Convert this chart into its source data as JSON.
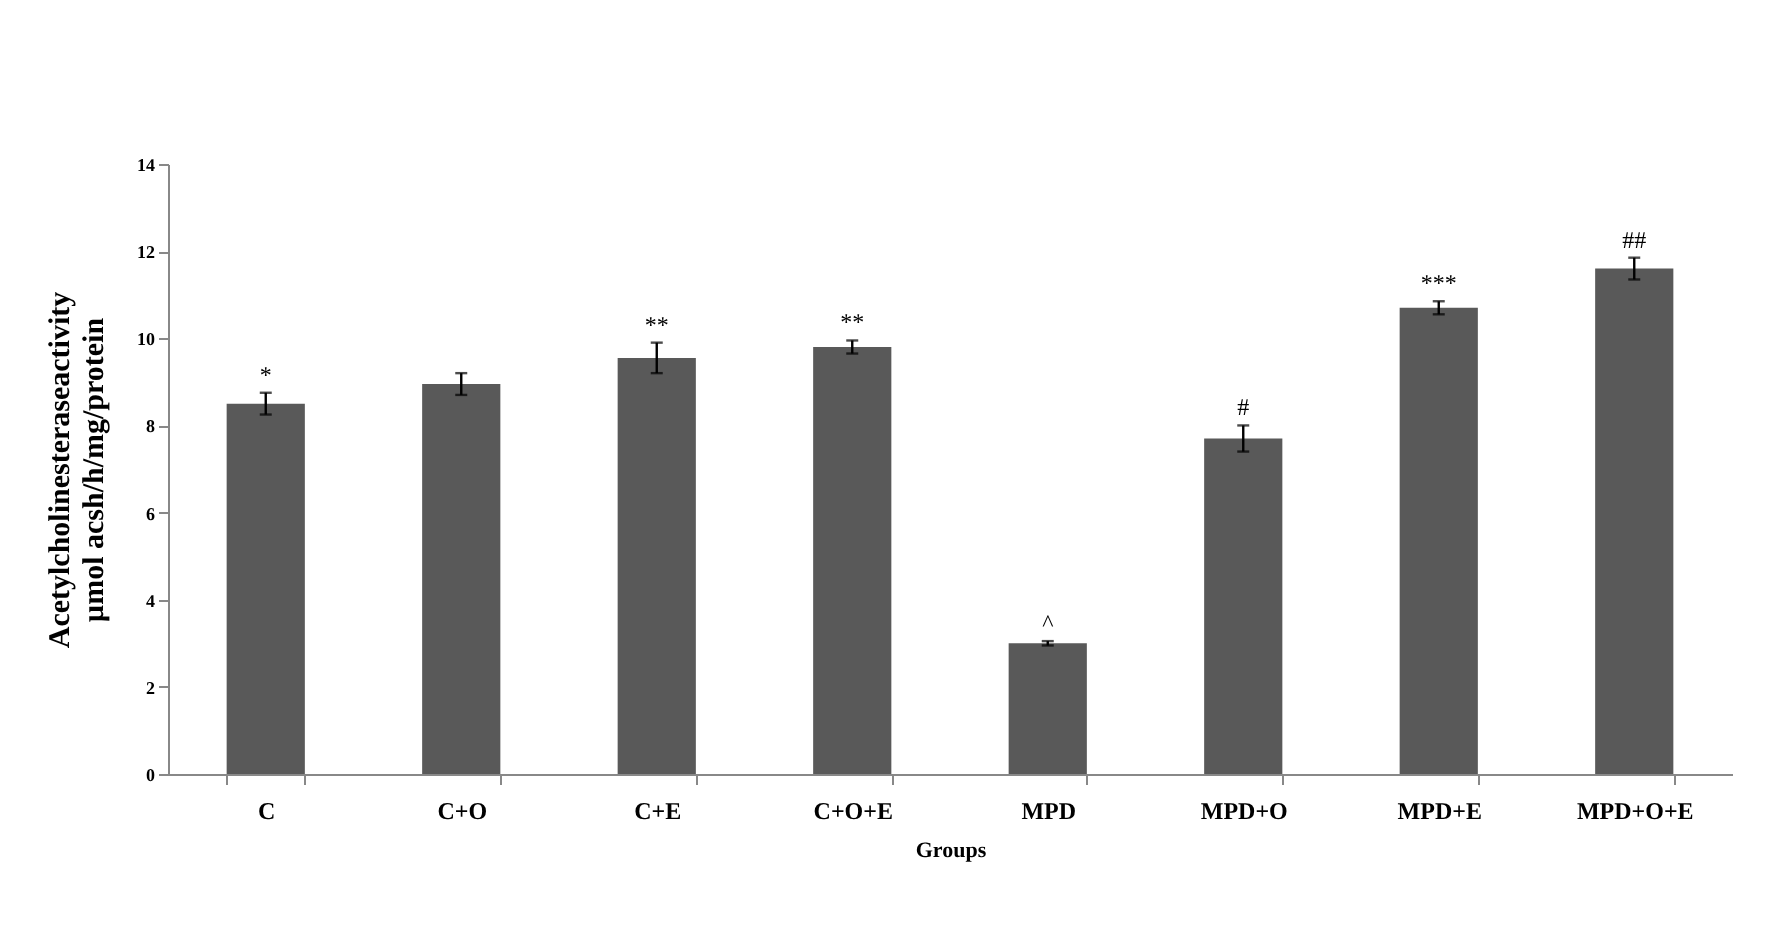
{
  "chart_data": {
    "type": "bar",
    "xlabel": "Groups",
    "ylabel": [
      "Acetylcholinesteraseactivity",
      "µmol acsh/h/mg/protein"
    ],
    "categories": [
      "C",
      "C+O",
      "C+E",
      "C+O+E",
      "MPD",
      "MPD+O",
      "MPD+E",
      "MPD+O+E"
    ],
    "values": [
      8.5,
      8.95,
      9.55,
      9.8,
      3.0,
      7.7,
      10.7,
      11.6
    ],
    "errors": [
      0.25,
      0.25,
      0.35,
      0.15,
      0.05,
      0.3,
      0.15,
      0.25
    ],
    "color": "#595959",
    "ylim": [
      0,
      14
    ],
    "yticks": [
      0,
      2,
      4,
      6,
      8,
      10,
      12,
      14
    ],
    "grid": false,
    "annotations": [
      {
        "text": "*",
        "x": "C",
        "y": 8.75
      },
      {
        "text": "**",
        "x": "C+E",
        "y": 9.9
      },
      {
        "text": "**",
        "x": "C+O+E",
        "y": 9.95
      },
      {
        "text": "^",
        "x": "MPD",
        "y": 3.05
      },
      {
        "text": "#",
        "x": "MPD+O",
        "y": 8.0
      },
      {
        "text": "***",
        "x": "MPD+E",
        "y": 10.85
      },
      {
        "text": "##",
        "x": "MPD+O+E",
        "y": 11.85
      }
    ]
  }
}
